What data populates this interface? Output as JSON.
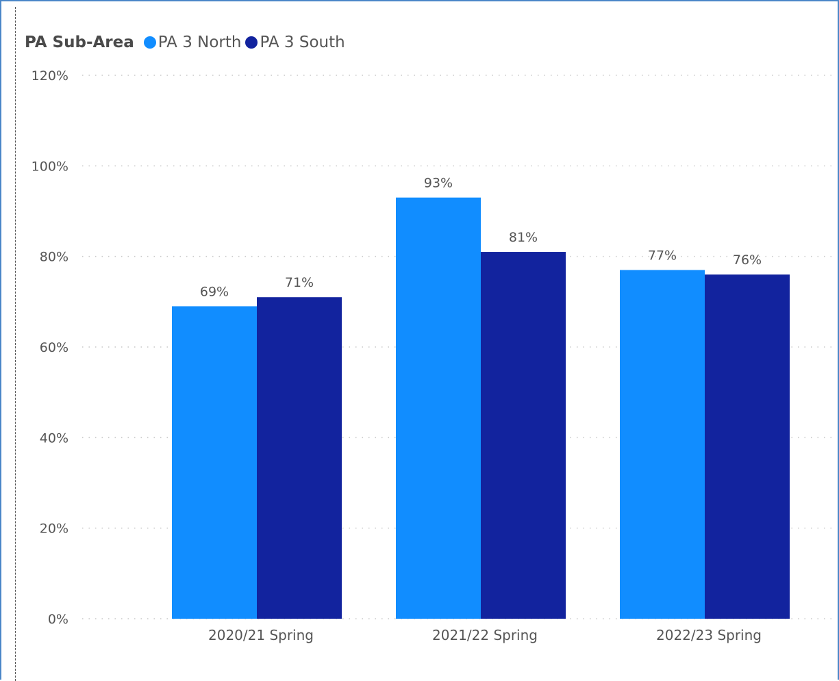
{
  "colors": {
    "series_north": "#118dff",
    "series_south": "#12239e",
    "gridline": "#c8c8c8",
    "text": "#555555",
    "frame": "#4a86c8"
  },
  "legend": {
    "title": "PA Sub-Area",
    "items": [
      "PA 3 North",
      "PA 3 South"
    ]
  },
  "chart_data": {
    "type": "bar",
    "title": "",
    "xlabel": "",
    "ylabel": "",
    "categories": [
      "2020/21 Spring",
      "2021/22 Spring",
      "2022/23 Spring"
    ],
    "series": [
      {
        "name": "PA 3 North",
        "values": [
          69,
          93,
          77
        ],
        "labels": [
          "69%",
          "93%",
          "77%"
        ]
      },
      {
        "name": "PA 3 South",
        "values": [
          71,
          81,
          76
        ],
        "labels": [
          "71%",
          "81%",
          "76%"
        ]
      }
    ],
    "ylim": [
      0,
      120
    ],
    "yticks": [
      0,
      20,
      40,
      60,
      80,
      100,
      120
    ],
    "ytick_labels": [
      "0%",
      "20%",
      "40%",
      "60%",
      "80%",
      "100%",
      "120%"
    ],
    "grid": true,
    "legend_position": "top-left"
  }
}
